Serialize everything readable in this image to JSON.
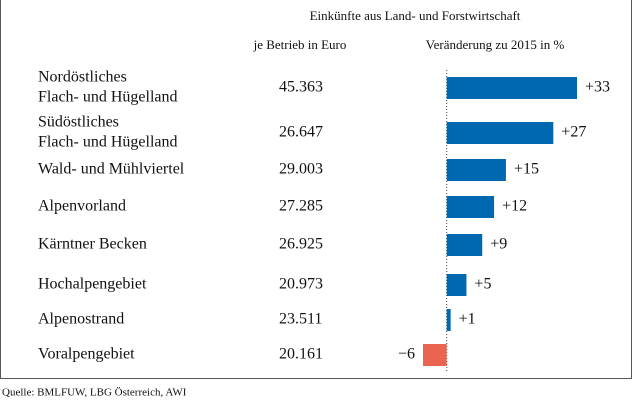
{
  "chart_data": {
    "type": "bar",
    "orientation": "horizontal",
    "title": "Einkünfte aus Land- und Forstwirtschaft",
    "column_headers": [
      "je Betrieb in Euro",
      "Veränderung zu 2015 in %"
    ],
    "categories": [
      [
        "Nordöstliches",
        "Flach- und Hügelland"
      ],
      [
        "Südöstliches",
        "Flach- und Hügelland"
      ],
      [
        "Wald- und Mühlviertel"
      ],
      [
        "Alpenvorland"
      ],
      [
        "Kärntner Becken"
      ],
      [
        "Hochalpengebiet"
      ],
      [
        "Alpenostrand"
      ],
      [
        "Voralpengebiet"
      ]
    ],
    "income": [
      "45.363",
      "26.647",
      "29.003",
      "27.285",
      "26.925",
      "20.973",
      "23.511",
      "20.161"
    ],
    "values": [
      33,
      27,
      15,
      12,
      9,
      5,
      1,
      -6
    ],
    "value_labels": [
      "+33",
      "+27",
      "+15",
      "+12",
      "+9",
      "+5",
      "+1",
      "−6"
    ],
    "color": "#0067b1",
    "negative_color": "#ea6550",
    "xlim": [
      -6,
      33
    ],
    "source": "Quelle: BMLFUW, LBG Österreich, AWI"
  }
}
